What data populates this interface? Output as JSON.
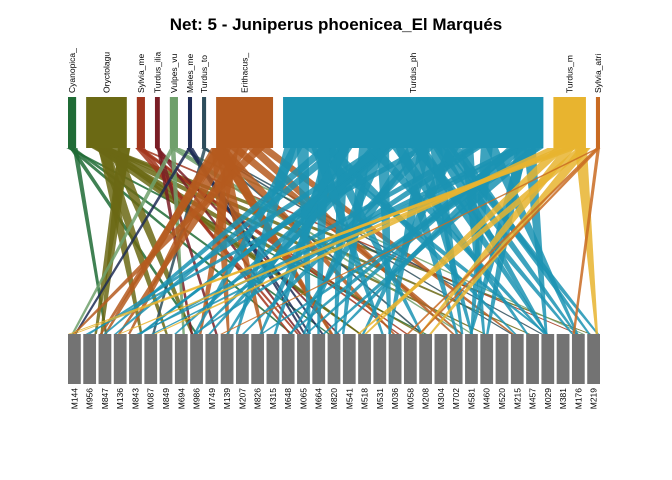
{
  "title": "Net: 5 - Juniperus phoenicea_El Marqués",
  "chart_data": {
    "type": "bipartite-network",
    "higher_nodes": [
      {
        "name": "Cyanopica_",
        "color": "#1f6b35",
        "weight": 1
      },
      {
        "name": "Oryctolagu",
        "color": "#6b6914",
        "weight": 5
      },
      {
        "name": "Sylvia_me",
        "color": "#a3361d",
        "weight": 1
      },
      {
        "name": "Turdus_ilia",
        "color": "#7a1e26",
        "weight": 0.6
      },
      {
        "name": "Vulpes_vu",
        "color": "#6fa06b",
        "weight": 1
      },
      {
        "name": "Meles_me",
        "color": "#1d2b55",
        "weight": 0.5
      },
      {
        "name": "Turdus_to",
        "color": "#2d4d5b",
        "weight": 0.5
      },
      {
        "name": "Erithacus_",
        "color": "#b55a1e",
        "weight": 7
      },
      {
        "name": "Turdus_ph",
        "color": "#1b93b3",
        "weight": 32
      },
      {
        "name": "Turdus_m",
        "color": "#e8b42f",
        "weight": 4
      },
      {
        "name": "Sylvia_atri",
        "color": "#c96b22",
        "weight": 0.5
      }
    ],
    "lower_nodes": [
      "M144",
      "M956",
      "M847",
      "M136",
      "M843",
      "M087",
      "M849",
      "M694",
      "M986",
      "M749",
      "M139",
      "M207",
      "M826",
      "M315",
      "M648",
      "M065",
      "M664",
      "M820",
      "M541",
      "M518",
      "M531",
      "M036",
      "M058",
      "M208",
      "M304",
      "M702",
      "M581",
      "M460",
      "M520",
      "M215",
      "M457",
      "M029",
      "M381",
      "M176",
      "M219"
    ],
    "lower_color": "#737373"
  }
}
